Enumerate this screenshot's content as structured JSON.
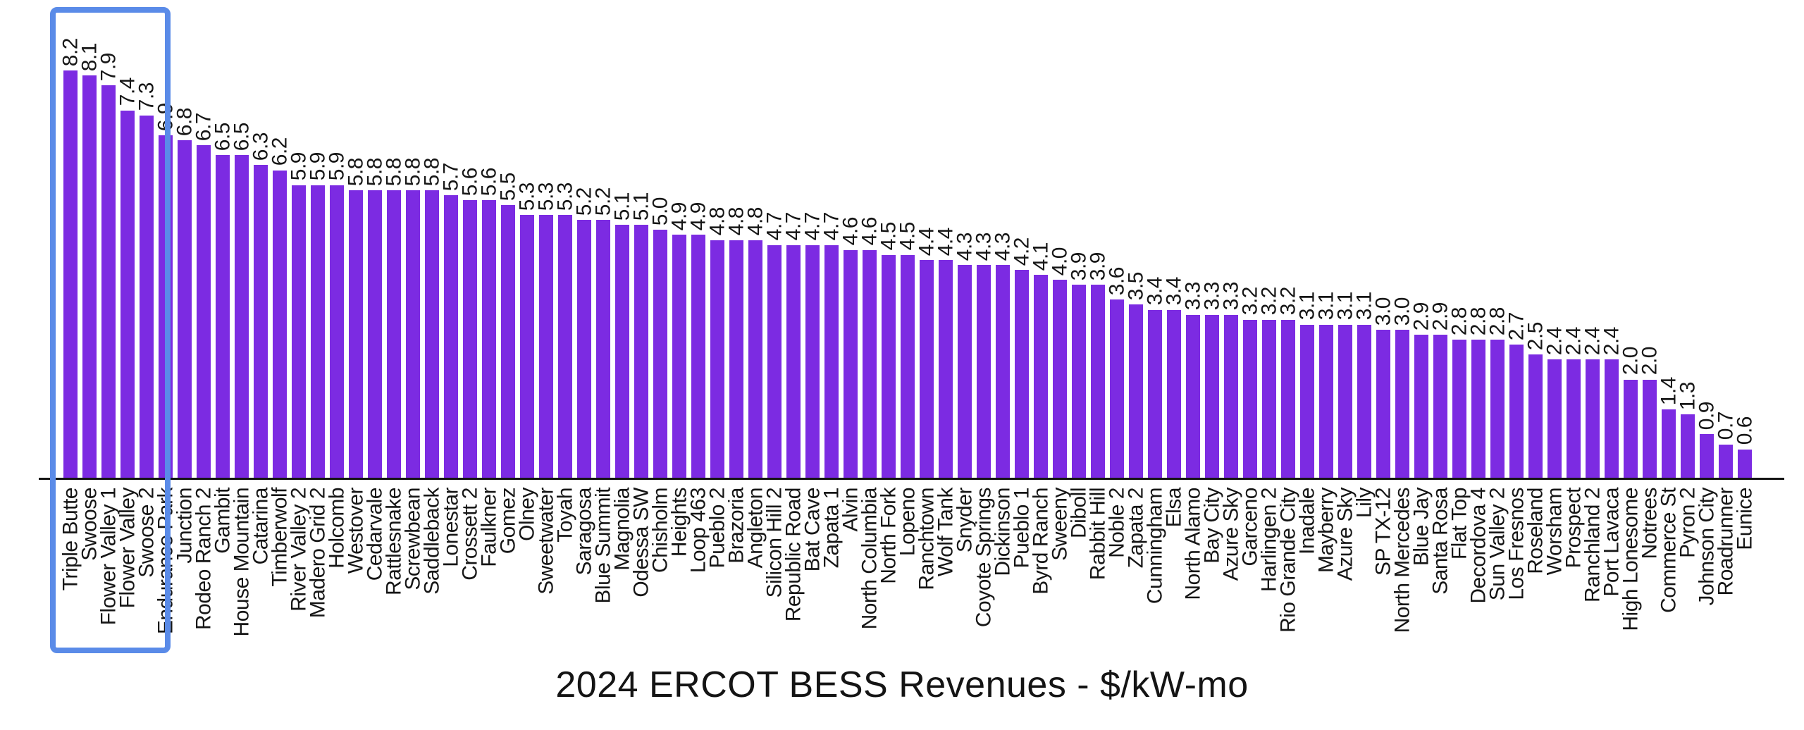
{
  "chart_data": {
    "type": "bar",
    "title": "2024 ERCOT BESS Revenues - $/kW-mo",
    "xlabel": "",
    "ylabel": "",
    "ylim": [
      0,
      8.2
    ],
    "grid": false,
    "legend": "none",
    "bar_color": "#7C2BE2",
    "axis_color": "#141414",
    "value_label_rotation_deg": 90,
    "category_label_rotation_deg": 90,
    "highlight_box": {
      "color": "#5A8BE8",
      "categories_enclosed": [
        "Triple Butte",
        "Swoose",
        "Flower Valley 1",
        "Flower Valley",
        "Swoose 2"
      ]
    },
    "categories": [
      "Triple Butte",
      "Swoose",
      "Flower Valley 1",
      "Flower Valley",
      "Swoose 2",
      "Endurance Park",
      "Junction",
      "Rodeo Ranch 2",
      "Gambit",
      "House Mountain",
      "Catarina",
      "Timberwolf",
      "River Valley 2",
      "Madero Grid 2",
      "Holcomb",
      "Westover",
      "Cedarvale",
      "Rattlesnake",
      "Screwbean",
      "Saddleback",
      "Lonestar",
      "Crossett 2",
      "Faulkner",
      "Gomez",
      "Olney",
      "Sweetwater",
      "Toyah",
      "Saragosa",
      "Blue Summit",
      "Magnolia",
      "Odessa SW",
      "Chisholm",
      "Heights",
      "Loop 463",
      "Pueblo 2",
      "Brazoria",
      "Angleton",
      "Silicon Hill 2",
      "Republic Road",
      "Bat Cave",
      "Zapata 1",
      "Alvin",
      "North Columbia",
      "North Fork",
      "Lopeno",
      "Ranchtown",
      "Wolf Tank",
      "Snyder",
      "Coyote Springs",
      "Dickinson",
      "Pueblo 1",
      "Byrd Ranch",
      "Sweeny",
      "Diboll",
      "Rabbit Hill",
      "Noble 2",
      "Zapata 2",
      "Cunningham",
      "Elsa",
      "North Alamo",
      "Bay City",
      "Azure Sky",
      "Garceno",
      "Harlingen 2",
      "Rio Grande City",
      "Inadale",
      "Mayberry",
      "Azure Sky",
      "Lily",
      "SP TX-12",
      "North Mercedes",
      "Blue Jay",
      "Santa Rosa",
      "Flat Top",
      "Decordova 4",
      "Sun Valley 2",
      "Los Fresnos",
      "Roseland",
      "Worsham",
      "Prospect",
      "Ranchland 2",
      "Port Lavaca",
      "High Lonesome",
      "Notrees",
      "Commerce St",
      "Pyron 2",
      "Johnson City",
      "Roadrunner",
      "Eunice"
    ],
    "values": [
      8.2,
      8.1,
      7.9,
      7.4,
      7.3,
      6.9,
      6.8,
      6.7,
      6.5,
      6.5,
      6.3,
      6.2,
      5.9,
      5.9,
      5.9,
      5.8,
      5.8,
      5.8,
      5.8,
      5.8,
      5.7,
      5.6,
      5.6,
      5.5,
      5.3,
      5.3,
      5.3,
      5.2,
      5.2,
      5.1,
      5.1,
      5.0,
      4.9,
      4.9,
      4.8,
      4.8,
      4.8,
      4.7,
      4.7,
      4.7,
      4.7,
      4.6,
      4.6,
      4.5,
      4.5,
      4.4,
      4.4,
      4.3,
      4.3,
      4.3,
      4.2,
      4.1,
      4.0,
      3.9,
      3.9,
      3.6,
      3.5,
      3.4,
      3.4,
      3.3,
      3.3,
      3.3,
      3.2,
      3.2,
      3.2,
      3.1,
      3.1,
      3.1,
      3.1,
      3.0,
      3.0,
      2.9,
      2.9,
      2.8,
      2.8,
      2.8,
      2.7,
      2.5,
      2.4,
      2.4,
      2.4,
      2.4,
      2.0,
      2.0,
      1.4,
      1.3,
      0.9,
      0.7,
      0.6
    ]
  }
}
